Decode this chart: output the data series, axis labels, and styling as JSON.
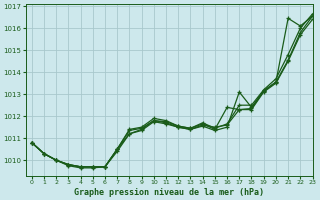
{
  "xlabel": "Graphe pression niveau de la mer (hPa)",
  "bg_color": "#cde8ec",
  "grid_color": "#a8c8cc",
  "line_color": "#1a5c1a",
  "xlim": [
    -0.5,
    23
  ],
  "ylim": [
    1009.3,
    1017.1
  ],
  "yticks": [
    1010,
    1011,
    1012,
    1013,
    1014,
    1015,
    1016,
    1017
  ],
  "xticks": [
    0,
    1,
    2,
    3,
    4,
    5,
    6,
    7,
    8,
    9,
    10,
    11,
    12,
    13,
    14,
    15,
    16,
    17,
    18,
    19,
    20,
    21,
    22,
    23
  ],
  "series": [
    [
      1010.8,
      1010.3,
      1010.0,
      1009.8,
      1009.7,
      1009.7,
      1009.7,
      1010.5,
      1011.2,
      1011.4,
      1011.8,
      1011.7,
      1011.5,
      1011.4,
      1011.6,
      1011.5,
      1011.6,
      1012.3,
      1012.3,
      1013.1,
      1013.5,
      1014.5,
      1015.7,
      1016.4
    ],
    [
      1010.8,
      1010.3,
      1010.0,
      1009.75,
      1009.65,
      1009.65,
      1009.7,
      1010.4,
      1011.2,
      1011.35,
      1011.75,
      1011.65,
      1011.5,
      1011.4,
      1011.55,
      1011.35,
      1011.5,
      1013.1,
      1012.4,
      1013.15,
      1013.55,
      1016.45,
      1016.1,
      1016.55
    ],
    [
      1010.8,
      1010.3,
      1010.0,
      1009.8,
      1009.7,
      1009.7,
      1009.7,
      1010.5,
      1011.35,
      1011.45,
      1011.8,
      1011.75,
      1011.55,
      1011.45,
      1011.65,
      1011.4,
      1012.4,
      1012.3,
      1012.35,
      1013.15,
      1013.55,
      1014.55,
      1015.8,
      1016.55
    ],
    [
      1010.8,
      1010.3,
      1010.0,
      1009.8,
      1009.7,
      1009.7,
      1009.7,
      1010.5,
      1011.4,
      1011.5,
      1011.9,
      1011.8,
      1011.55,
      1011.45,
      1011.7,
      1011.45,
      1011.65,
      1012.5,
      1012.5,
      1013.2,
      1013.7,
      1014.8,
      1016.0,
      1016.65
    ]
  ],
  "markers": [
    "+",
    "+",
    "+",
    "+"
  ],
  "markersize": 2.5,
  "linewidth": 0.9
}
